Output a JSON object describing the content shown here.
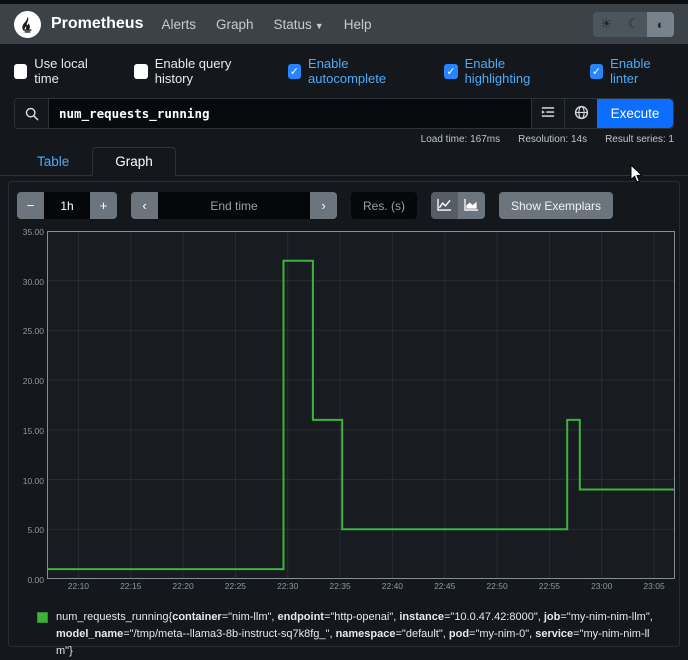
{
  "navbar": {
    "brand": "Prometheus",
    "links": [
      {
        "label": "Alerts",
        "caret": false
      },
      {
        "label": "Graph",
        "caret": false
      },
      {
        "label": "Status",
        "caret": true
      },
      {
        "label": "Help",
        "caret": false
      }
    ],
    "theme_buttons": [
      {
        "name": "theme-light-button",
        "icon": "sun-icon",
        "glyph": "☀",
        "active": false
      },
      {
        "name": "theme-dark-button",
        "icon": "moon-icon",
        "glyph": "☾",
        "active": false
      },
      {
        "name": "theme-auto-button",
        "icon": "contrast-icon",
        "glyph": "◐",
        "active": true
      }
    ]
  },
  "options": [
    {
      "label": "Use local time",
      "checked": false
    },
    {
      "label": "Enable query history",
      "checked": false
    },
    {
      "label": "Enable autocomplete",
      "checked": true
    },
    {
      "label": "Enable highlighting",
      "checked": true
    },
    {
      "label": "Enable linter",
      "checked": true
    }
  ],
  "query": {
    "value": "num_requests_running",
    "execute_label": "Execute"
  },
  "stats": [
    "Load time: 167ms",
    "Resolution: 14s",
    "Result series: 1"
  ],
  "tabs": [
    {
      "label": "Table",
      "active": false
    },
    {
      "label": "Graph",
      "active": true
    }
  ],
  "controls": {
    "range_minus": "−",
    "range_value": "1h",
    "range_plus": "+",
    "prev_arrow": "‹",
    "end_time_placeholder": "End time",
    "next_arrow": "›",
    "res_placeholder": "Res. (s)",
    "show_exemplars": "Show Exemplars"
  },
  "chart_data": {
    "type": "line",
    "title": "",
    "xlabel": "",
    "ylabel": "",
    "ylim": [
      0,
      35
    ],
    "grid": true,
    "legend_position": "bottom",
    "x_domain_minutes_after_22h": [
      7,
      67
    ],
    "yticks": {
      "values": [
        0,
        5,
        10,
        15,
        20,
        25,
        30,
        35
      ],
      "labels": [
        "0.00",
        "5.00",
        "10.00",
        "15.00",
        "20.00",
        "25.00",
        "30.00",
        "35.00"
      ]
    },
    "xticks": {
      "minutes_after_22h": [
        10,
        15,
        20,
        25,
        30,
        35,
        40,
        45,
        50,
        55,
        60,
        65
      ],
      "labels": [
        "22:10",
        "22:15",
        "22:20",
        "22:25",
        "22:30",
        "22:35",
        "22:40",
        "22:45",
        "22:50",
        "22:55",
        "23:00",
        "23:05"
      ]
    },
    "series": [
      {
        "name": "num_requests_running",
        "color": "#3cb43c",
        "step_points": [
          [
            7,
            1
          ],
          [
            29.6,
            1
          ],
          [
            29.6,
            32
          ],
          [
            32.4,
            32
          ],
          [
            32.4,
            16
          ],
          [
            35.2,
            16
          ],
          [
            35.2,
            5
          ],
          [
            56.7,
            5
          ],
          [
            56.7,
            16
          ],
          [
            57.9,
            16
          ],
          [
            57.9,
            9
          ],
          [
            67,
            9
          ]
        ],
        "segments_description": "value 1 from 22:07 to 22:30, spike to 32 until 22:32, 16 until 22:35, 5 until 22:57, brief spike to 16, then 9 until 23:07"
      }
    ]
  },
  "legend": {
    "metric": "num_requests_running",
    "open": "{",
    "close": "}",
    "labels": [
      {
        "key": "container",
        "value": "nim-llm"
      },
      {
        "key": "endpoint",
        "value": "http-openai"
      },
      {
        "key": "instance",
        "value": "10.0.47.42:8000"
      },
      {
        "key": "job",
        "value": "my-nim-nim-llm"
      },
      {
        "key": "model_name",
        "value": "/tmp/meta--llama3-8b-instruct-sq7k8fg_"
      },
      {
        "key": "namespace",
        "value": "default"
      },
      {
        "key": "pod",
        "value": "my-nim-0"
      },
      {
        "key": "service",
        "value": "my-nim-nim-llm"
      }
    ]
  }
}
